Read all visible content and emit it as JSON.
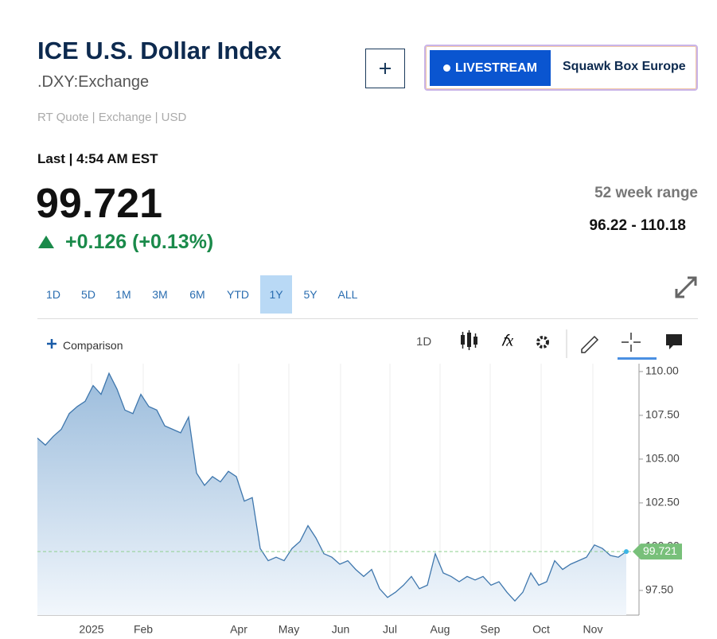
{
  "header": {
    "title": "ICE U.S. Dollar Index",
    "symbol": ".DXY:Exchange",
    "quote_info": "RT Quote | Exchange | USD"
  },
  "livestream": {
    "badge": "LIVESTREAM",
    "show": "Squawk Box Europe"
  },
  "quote": {
    "last_label": "Last | 4:54 AM EST",
    "price": "99.721",
    "change": "+0.126 (+0.13%)",
    "range_label": "52 week range",
    "range": "96.22 - 110.18"
  },
  "periods": [
    "1D",
    "5D",
    "1M",
    "3M",
    "6M",
    "YTD",
    "1Y",
    "5Y",
    "ALL"
  ],
  "active_period": 6,
  "toolbar": {
    "comparison": "Comparison",
    "interval": "1D"
  },
  "chart_data": {
    "type": "line",
    "color": "#3f77ad",
    "values": [
      106.2,
      105.8,
      106.3,
      106.7,
      107.6,
      108.0,
      108.3,
      109.2,
      108.7,
      109.9,
      109.0,
      107.8,
      107.6,
      108.7,
      108.0,
      107.8,
      106.9,
      106.7,
      106.5,
      107.4,
      104.2,
      103.5,
      104.0,
      103.7,
      104.3,
      104.0,
      102.6,
      102.8,
      99.9,
      99.2,
      99.4,
      99.2,
      99.9,
      100.3,
      101.2,
      100.5,
      99.6,
      99.4,
      99.0,
      99.2,
      98.7,
      98.3,
      98.7,
      97.6,
      97.1,
      97.4,
      97.8,
      98.3,
      97.6,
      97.8,
      99.6,
      98.5,
      98.3,
      98.0,
      98.3,
      98.1,
      98.3,
      97.8,
      98.0,
      97.4,
      96.9,
      97.4,
      98.5,
      97.8,
      98.0,
      99.2,
      98.7,
      99.0,
      99.2,
      99.4,
      100.1,
      99.9,
      99.5,
      99.4,
      99.721
    ],
    "xlim": [
      0,
      75.6
    ],
    "xticks": [
      {
        "value": 6.8,
        "label": "2025"
      },
      {
        "value": 13.3,
        "label": "Feb"
      },
      {
        "value": 25.3,
        "label": "Apr"
      },
      {
        "value": 31.6,
        "label": "May"
      },
      {
        "value": 38.1,
        "label": "Jun"
      },
      {
        "value": 44.3,
        "label": "Jul"
      },
      {
        "value": 50.6,
        "label": "Aug"
      },
      {
        "value": 56.9,
        "label": "Sep"
      },
      {
        "value": 63.3,
        "label": "Oct"
      },
      {
        "value": 69.8,
        "label": "Nov"
      }
    ],
    "ylim": [
      96.09,
      110.45
    ],
    "yticks": [
      {
        "value": 97.5,
        "label": "97.50"
      },
      {
        "value": 100,
        "label": "100.00"
      },
      {
        "value": 102.5,
        "label": "102.50"
      },
      {
        "value": 105,
        "label": "105.00"
      },
      {
        "value": 107.5,
        "label": "107.50"
      },
      {
        "value": 110,
        "label": "110.00"
      }
    ],
    "grid": true
  }
}
